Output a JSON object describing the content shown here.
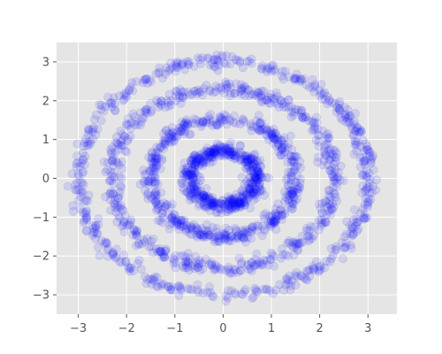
{
  "chart_data": {
    "type": "scatter",
    "title": "",
    "xlabel": "",
    "ylabel": "",
    "xlim": [
      -3.45,
      3.6
    ],
    "ylim": [
      -3.5,
      3.5
    ],
    "xticks": [
      -3,
      -2,
      -1,
      0,
      1,
      2,
      3
    ],
    "yticks": [
      -3,
      -2,
      -1,
      0,
      1,
      2,
      3
    ],
    "xtick_labels": [
      "−3",
      "−2",
      "−1",
      "0",
      "1",
      "2",
      "3"
    ],
    "ytick_labels": [
      "−3",
      "−2",
      "−1",
      "0",
      "1",
      "2",
      "3"
    ],
    "grid": true,
    "style": "ggplot",
    "background_color": "#e5e5e5",
    "marker_color": "#0000ff",
    "marker_alpha": 0.1,
    "series": [
      {
        "ring_radius": 0.7,
        "noise": 0.09,
        "n_points": 500
      },
      {
        "ring_radius": 1.5,
        "noise": 0.09,
        "n_points": 500
      },
      {
        "ring_radius": 2.3,
        "noise": 0.09,
        "n_points": 500
      },
      {
        "ring_radius": 3.0,
        "noise": 0.09,
        "n_points": 500
      }
    ]
  }
}
